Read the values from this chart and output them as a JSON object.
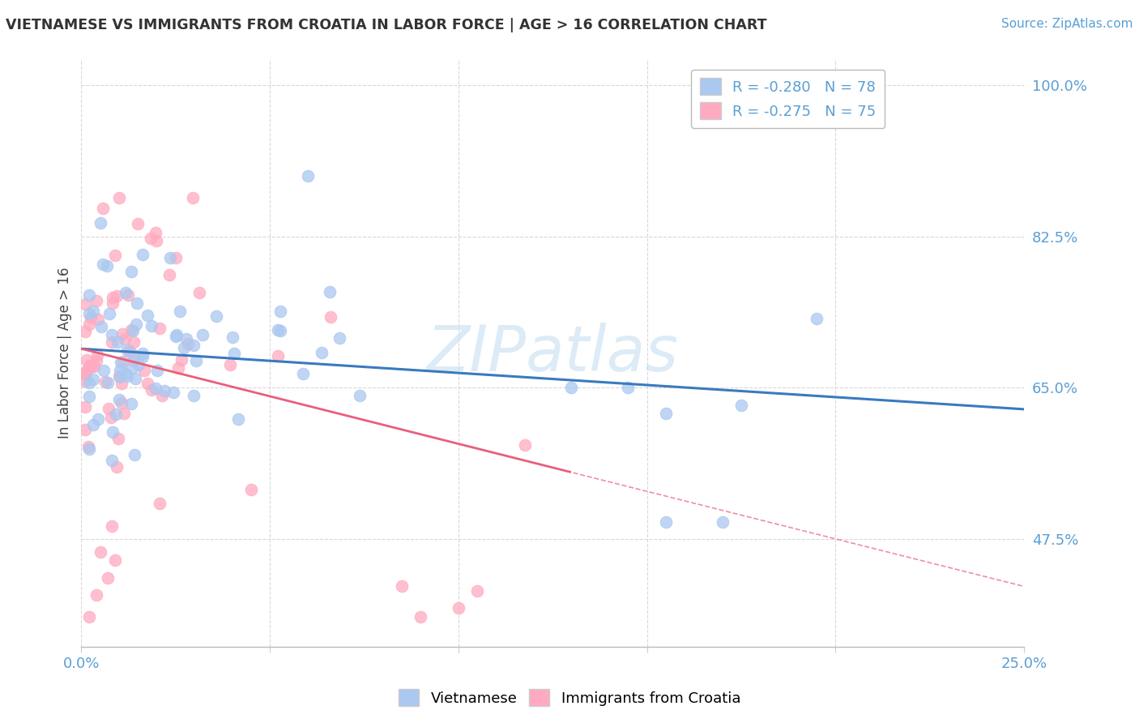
{
  "title": "VIETNAMESE VS IMMIGRANTS FROM CROATIA IN LABOR FORCE | AGE > 16 CORRELATION CHART",
  "source": "Source: ZipAtlas.com",
  "ylabel": "In Labor Force | Age > 16",
  "xlim": [
    0.0,
    0.25
  ],
  "ylim": [
    0.35,
    1.03
  ],
  "xtick_positions": [
    0.0,
    0.05,
    0.1,
    0.15,
    0.2,
    0.25
  ],
  "xticklabels": [
    "0.0%",
    "",
    "",
    "",
    "",
    "25.0%"
  ],
  "yticks_right": [
    0.475,
    0.65,
    0.825,
    1.0
  ],
  "yticklabels_right": [
    "47.5%",
    "65.0%",
    "82.5%",
    "100.0%"
  ],
  "legend1_label": "R = -0.280   N = 78",
  "legend2_label": "R = -0.275   N = 75",
  "watermark": "ZIPatlas",
  "series1_color": "#aac8f0",
  "series2_color": "#ffaac0",
  "trend1_color": "#3a7abf",
  "trend2_color": "#e8607a",
  "series1_name": "Vietnamese",
  "series2_name": "Immigrants from Croatia",
  "background_color": "#ffffff",
  "grid_color": "#d8d8d8",
  "tick_color": "#5a9fd4",
  "title_color": "#333333",
  "source_color": "#5a9fd4",
  "legend_text_color": "#5a9fd4",
  "trend1_intercept": 0.695,
  "trend1_slope": -0.28,
  "trend2_intercept": 0.695,
  "trend2_slope": -1.1
}
